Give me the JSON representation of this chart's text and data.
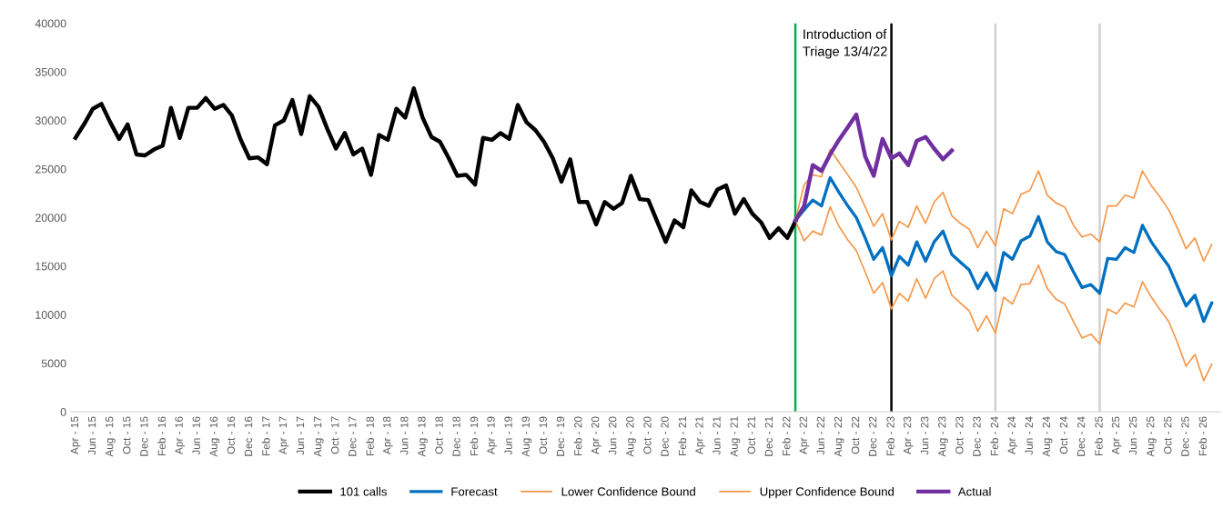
{
  "chart_data": {
    "type": "line",
    "x": [
      "2015-04",
      "2015-05",
      "2015-06",
      "2015-07",
      "2015-08",
      "2015-09",
      "2015-10",
      "2015-11",
      "2015-12",
      "2016-01",
      "2016-02",
      "2016-03",
      "2016-04",
      "2016-05",
      "2016-06",
      "2016-07",
      "2016-08",
      "2016-09",
      "2016-10",
      "2016-11",
      "2016-12",
      "2017-01",
      "2017-02",
      "2017-03",
      "2017-04",
      "2017-05",
      "2017-06",
      "2017-07",
      "2017-08",
      "2017-09",
      "2017-10",
      "2017-11",
      "2017-12",
      "2018-01",
      "2018-02",
      "2018-03",
      "2018-04",
      "2018-05",
      "2018-06",
      "2018-07",
      "2018-08",
      "2018-09",
      "2018-10",
      "2018-11",
      "2018-12",
      "2019-01",
      "2019-02",
      "2019-03",
      "2019-04",
      "2019-05",
      "2019-06",
      "2019-07",
      "2019-08",
      "2019-09",
      "2019-10",
      "2019-11",
      "2019-12",
      "2020-01",
      "2020-02",
      "2020-03",
      "2020-04",
      "2020-05",
      "2020-06",
      "2020-07",
      "2020-08",
      "2020-09",
      "2020-10",
      "2020-11",
      "2020-12",
      "2021-01",
      "2021-02",
      "2021-03",
      "2021-04",
      "2021-05",
      "2021-06",
      "2021-07",
      "2021-08",
      "2021-09",
      "2021-10",
      "2021-11",
      "2021-12",
      "2022-01",
      "2022-02",
      "2022-03",
      "2022-04",
      "2022-05",
      "2022-06",
      "2022-07",
      "2022-08",
      "2022-09",
      "2022-10",
      "2022-11",
      "2022-12",
      "2023-01",
      "2023-02",
      "2023-03",
      "2023-04",
      "2023-05",
      "2023-06",
      "2023-07",
      "2023-08",
      "2023-09",
      "2023-10",
      "2023-11",
      "2023-12",
      "2024-01",
      "2024-02",
      "2024-03",
      "2024-04",
      "2024-05",
      "2024-06",
      "2024-07",
      "2024-08",
      "2024-09",
      "2024-10",
      "2024-11",
      "2024-12",
      "2025-01",
      "2025-02",
      "2025-03",
      "2025-04",
      "2025-05",
      "2025-06",
      "2025-07",
      "2025-08",
      "2025-09",
      "2025-10",
      "2025-11",
      "2025-12",
      "2026-01",
      "2026-02",
      "2026-03"
    ],
    "series": [
      {
        "name": "101 calls",
        "color": "#000000",
        "values": [
          28200,
          29600,
          31200,
          31700,
          29800,
          28100,
          29600,
          26500,
          26400,
          27000,
          27400,
          31300,
          28200,
          31300,
          31300,
          32300,
          31200,
          31600,
          30500,
          28000,
          26100,
          26200,
          25500,
          29500,
          30000,
          32100,
          28600,
          32500,
          31400,
          29100,
          27100,
          28700,
          26500,
          27100,
          24400,
          28500,
          28000,
          31200,
          30300,
          33300,
          30300,
          28300,
          27800,
          26100,
          24300,
          24400,
          23400,
          28200,
          28000,
          28700,
          28100,
          31600,
          29800,
          29000,
          27800,
          26100,
          23700,
          26000,
          21600,
          21600,
          19300,
          21600,
          20900,
          21500,
          24300,
          21900,
          21800,
          19600,
          17500,
          19700,
          19000,
          22800,
          21600,
          21200,
          22900,
          23300,
          20400,
          21900,
          20400,
          19500,
          17900,
          18900,
          17900,
          19600,
          null,
          null,
          null,
          null,
          null,
          null,
          null,
          null,
          null,
          null,
          null,
          null,
          null,
          null,
          null,
          null,
          null,
          null,
          null,
          null,
          null,
          null,
          null,
          null,
          null,
          null,
          null,
          null,
          null,
          null,
          null,
          null,
          null,
          null,
          null,
          null,
          null,
          null,
          null,
          null,
          null,
          null,
          null,
          null,
          null,
          null,
          null,
          null
        ]
      },
      {
        "name": "Forecast",
        "color": "#0070c0",
        "values": [
          null,
          null,
          null,
          null,
          null,
          null,
          null,
          null,
          null,
          null,
          null,
          null,
          null,
          null,
          null,
          null,
          null,
          null,
          null,
          null,
          null,
          null,
          null,
          null,
          null,
          null,
          null,
          null,
          null,
          null,
          null,
          null,
          null,
          null,
          null,
          null,
          null,
          null,
          null,
          null,
          null,
          null,
          null,
          null,
          null,
          null,
          null,
          null,
          null,
          null,
          null,
          null,
          null,
          null,
          null,
          null,
          null,
          null,
          null,
          null,
          null,
          null,
          null,
          null,
          null,
          null,
          null,
          null,
          null,
          null,
          null,
          null,
          null,
          null,
          null,
          null,
          null,
          null,
          null,
          null,
          null,
          null,
          null,
          19700,
          20800,
          21800,
          21200,
          24100,
          22600,
          21200,
          20000,
          17900,
          15700,
          16900,
          14000,
          16000,
          15100,
          17500,
          15500,
          17500,
          18600,
          16200,
          15400,
          14600,
          12700,
          14300,
          12500,
          16400,
          15700,
          17600,
          18100,
          20100,
          17500,
          16500,
          16200,
          14400,
          12800,
          13100,
          12200,
          15800,
          15700,
          16900,
          16400,
          19200,
          17500,
          16200,
          15000,
          12900,
          10900,
          12000,
          9300,
          11200
        ]
      },
      {
        "name": "Lower Confidence Bound",
        "color": "#f79646",
        "values": [
          null,
          null,
          null,
          null,
          null,
          null,
          null,
          null,
          null,
          null,
          null,
          null,
          null,
          null,
          null,
          null,
          null,
          null,
          null,
          null,
          null,
          null,
          null,
          null,
          null,
          null,
          null,
          null,
          null,
          null,
          null,
          null,
          null,
          null,
          null,
          null,
          null,
          null,
          null,
          null,
          null,
          null,
          null,
          null,
          null,
          null,
          null,
          null,
          null,
          null,
          null,
          null,
          null,
          null,
          null,
          null,
          null,
          null,
          null,
          null,
          null,
          null,
          null,
          null,
          null,
          null,
          null,
          null,
          null,
          null,
          null,
          null,
          null,
          null,
          null,
          null,
          null,
          null,
          null,
          null,
          null,
          null,
          null,
          19700,
          17600,
          18600,
          18200,
          21100,
          19100,
          17700,
          16600,
          14400,
          12200,
          13300,
          10600,
          12200,
          11400,
          13700,
          11700,
          13700,
          14500,
          12000,
          11200,
          10400,
          8300,
          9900,
          8100,
          11800,
          11100,
          13100,
          13200,
          15100,
          12700,
          11600,
          11100,
          9300,
          7600,
          8000,
          7000,
          10600,
          10100,
          11200,
          10800,
          13400,
          11800,
          10500,
          9300,
          7100,
          4700,
          5900,
          3200,
          4900
        ]
      },
      {
        "name": "Upper Confidence Bound",
        "color": "#f79646",
        "values": [
          null,
          null,
          null,
          null,
          null,
          null,
          null,
          null,
          null,
          null,
          null,
          null,
          null,
          null,
          null,
          null,
          null,
          null,
          null,
          null,
          null,
          null,
          null,
          null,
          null,
          null,
          null,
          null,
          null,
          null,
          null,
          null,
          null,
          null,
          null,
          null,
          null,
          null,
          null,
          null,
          null,
          null,
          null,
          null,
          null,
          null,
          null,
          null,
          null,
          null,
          null,
          null,
          null,
          null,
          null,
          null,
          null,
          null,
          null,
          null,
          null,
          null,
          null,
          null,
          null,
          null,
          null,
          null,
          null,
          null,
          null,
          null,
          null,
          null,
          null,
          null,
          null,
          null,
          null,
          null,
          null,
          null,
          null,
          19700,
          23400,
          24400,
          24200,
          27000,
          25700,
          24400,
          23100,
          21100,
          19100,
          20400,
          17700,
          19600,
          19000,
          21200,
          19400,
          21600,
          22600,
          20200,
          19400,
          18800,
          16900,
          18600,
          17100,
          20900,
          20400,
          22400,
          22800,
          24800,
          22300,
          21500,
          21100,
          19200,
          18000,
          18300,
          17500,
          21200,
          21200,
          22300,
          22000,
          24800,
          23300,
          22100,
          20800,
          18900,
          16800,
          17900,
          15500,
          17200
        ]
      },
      {
        "name": "Actual",
        "color": "#7030a0",
        "values": [
          null,
          null,
          null,
          null,
          null,
          null,
          null,
          null,
          null,
          null,
          null,
          null,
          null,
          null,
          null,
          null,
          null,
          null,
          null,
          null,
          null,
          null,
          null,
          null,
          null,
          null,
          null,
          null,
          null,
          null,
          null,
          null,
          null,
          null,
          null,
          null,
          null,
          null,
          null,
          null,
          null,
          null,
          null,
          null,
          null,
          null,
          null,
          null,
          null,
          null,
          null,
          null,
          null,
          null,
          null,
          null,
          null,
          null,
          null,
          null,
          null,
          null,
          null,
          null,
          null,
          null,
          null,
          null,
          null,
          null,
          null,
          null,
          null,
          null,
          null,
          null,
          null,
          null,
          null,
          null,
          null,
          null,
          null,
          19700,
          21200,
          25400,
          24800,
          26500,
          28000,
          29300,
          30600,
          26300,
          24300,
          28100,
          26100,
          26600,
          25400,
          27900,
          28300,
          27100,
          26000,
          26900,
          null,
          null,
          null,
          null,
          null,
          null,
          null,
          null,
          null,
          null,
          null,
          null,
          null,
          null,
          null,
          null,
          null,
          null,
          null,
          null,
          null,
          null,
          null,
          null,
          null,
          null,
          null,
          null,
          null,
          null
        ]
      }
    ],
    "xlim": [
      "2015-03-16",
      "2026-04-01"
    ],
    "xticks": [
      {
        "value": "2015-04",
        "label": "Apr - 15"
      },
      {
        "value": "2015-06",
        "label": "Jun - 15"
      },
      {
        "value": "2015-08",
        "label": "Aug - 15"
      },
      {
        "value": "2015-10",
        "label": "Oct - 15"
      },
      {
        "value": "2015-12",
        "label": "Dec - 15"
      },
      {
        "value": "2016-02",
        "label": "Feb - 16"
      },
      {
        "value": "2016-04",
        "label": "Apr - 16"
      },
      {
        "value": "2016-06",
        "label": "Jun - 16"
      },
      {
        "value": "2016-08",
        "label": "Aug - 16"
      },
      {
        "value": "2016-10",
        "label": "Oct - 16"
      },
      {
        "value": "2016-12",
        "label": "Dec - 16"
      },
      {
        "value": "2017-02",
        "label": "Feb - 17"
      },
      {
        "value": "2017-04",
        "label": "Apr - 17"
      },
      {
        "value": "2017-06",
        "label": "Jun - 17"
      },
      {
        "value": "2017-08",
        "label": "Aug - 17"
      },
      {
        "value": "2017-10",
        "label": "Oct - 17"
      },
      {
        "value": "2017-12",
        "label": "Dec - 17"
      },
      {
        "value": "2018-02",
        "label": "Feb - 18"
      },
      {
        "value": "2018-04",
        "label": "Apr - 18"
      },
      {
        "value": "2018-06",
        "label": "Jun - 18"
      },
      {
        "value": "2018-08",
        "label": "Aug - 18"
      },
      {
        "value": "2018-10",
        "label": "Oct - 18"
      },
      {
        "value": "2018-12",
        "label": "Dec - 18"
      },
      {
        "value": "2019-02",
        "label": "Feb - 19"
      },
      {
        "value": "2019-04",
        "label": "Apr - 19"
      },
      {
        "value": "2019-06",
        "label": "Jun - 19"
      },
      {
        "value": "2019-08",
        "label": "Aug - 19"
      },
      {
        "value": "2019-10",
        "label": "Oct - 19"
      },
      {
        "value": "2019-12",
        "label": "Dec - 19"
      },
      {
        "value": "2020-02",
        "label": "Feb - 20"
      },
      {
        "value": "2020-04",
        "label": "Apr - 20"
      },
      {
        "value": "2020-06",
        "label": "Jun - 20"
      },
      {
        "value": "2020-08",
        "label": "Aug - 20"
      },
      {
        "value": "2020-10",
        "label": "Oct - 20"
      },
      {
        "value": "2020-12",
        "label": "Dec - 20"
      },
      {
        "value": "2021-02",
        "label": "Feb - 21"
      },
      {
        "value": "2021-04",
        "label": "Apr - 21"
      },
      {
        "value": "2021-06",
        "label": "Jun - 21"
      },
      {
        "value": "2021-08",
        "label": "Aug - 21"
      },
      {
        "value": "2021-10",
        "label": "Oct - 21"
      },
      {
        "value": "2021-12",
        "label": "Dec - 21"
      },
      {
        "value": "2022-02",
        "label": "Feb - 22"
      },
      {
        "value": "2022-04",
        "label": "Apr - 22"
      },
      {
        "value": "2022-06",
        "label": "Jun - 22"
      },
      {
        "value": "2022-08",
        "label": "Aug - 22"
      },
      {
        "value": "2022-10",
        "label": "Oct - 22"
      },
      {
        "value": "2022-12",
        "label": "Dec - 22"
      },
      {
        "value": "2023-02",
        "label": "Feb - 23"
      },
      {
        "value": "2023-04",
        "label": "Apr - 23"
      },
      {
        "value": "2023-06",
        "label": "Jun - 23"
      },
      {
        "value": "2023-08",
        "label": "Aug - 23"
      },
      {
        "value": "2023-10",
        "label": "Oct - 23"
      },
      {
        "value": "2023-12",
        "label": "Dec - 23"
      },
      {
        "value": "2024-02",
        "label": "Feb - 24"
      },
      {
        "value": "2024-04",
        "label": "Apr - 24"
      },
      {
        "value": "2024-06",
        "label": "Jun - 24"
      },
      {
        "value": "2024-08",
        "label": "Aug - 24"
      },
      {
        "value": "2024-10",
        "label": "Oct - 24"
      },
      {
        "value": "2024-12",
        "label": "Dec - 24"
      },
      {
        "value": "2025-02",
        "label": "Feb - 25"
      },
      {
        "value": "2025-04",
        "label": "Apr - 25"
      },
      {
        "value": "2025-06",
        "label": "Jun - 25"
      },
      {
        "value": "2025-08",
        "label": "Aug - 25"
      },
      {
        "value": "2025-10",
        "label": "Oct - 25"
      },
      {
        "value": "2025-12",
        "label": "Dec - 25"
      },
      {
        "value": "2026-02",
        "label": "Feb - 26"
      }
    ],
    "ylim": [
      0,
      40000
    ],
    "yticks": [
      0,
      5000,
      10000,
      15000,
      20000,
      25000,
      30000,
      35000,
      40000
    ],
    "ref_lines": [
      {
        "axis": "x",
        "value": "2022-03",
        "label": "Introduction of\nTriage 13/4/22",
        "color": "#00b050"
      },
      {
        "axis": "x",
        "value": "2023-02",
        "color": "#000000"
      },
      {
        "axis": "x",
        "value": "2024-02",
        "color": "#d0d0d0"
      },
      {
        "axis": "x",
        "value": "2025-02",
        "color": "#d0d0d0"
      }
    ],
    "grid": false,
    "legend": "bottom",
    "marker": "none",
    "line_style": "solid"
  }
}
